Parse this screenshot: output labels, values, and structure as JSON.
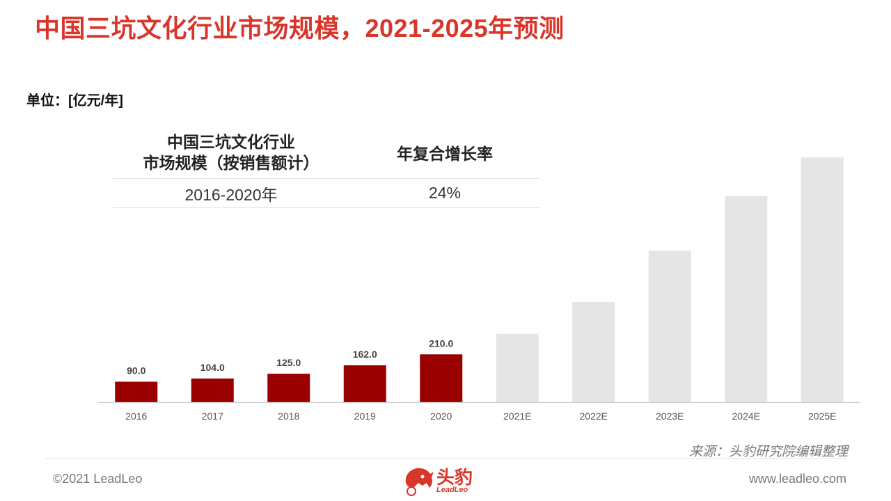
{
  "title": "中国三坑文化行业市场规模，2021-2025年预测",
  "unit": "单位：[亿元/年]",
  "cagr_table": {
    "header_col1_line1": "中国三坑文化行业",
    "header_col1_line2": "市场规模（按销售额计）",
    "header_col2": "年复合增长率",
    "row_period": "2016-2020年",
    "row_value": "24%"
  },
  "chart_data": {
    "type": "bar",
    "categories": [
      "2016",
      "2017",
      "2018",
      "2019",
      "2020",
      "2021E",
      "2022E",
      "2023E",
      "2024E",
      "2025E"
    ],
    "values": [
      90.0,
      104.0,
      125.0,
      162.0,
      210.0,
      300,
      440,
      665,
      905,
      1075
    ],
    "data_labels": [
      "90.0",
      "104.0",
      "125.0",
      "162.0",
      "210.0",
      "",
      "",
      "",
      "",
      ""
    ],
    "ylim": [
      0,
      1100
    ],
    "grid": false,
    "colors": {
      "actual": "#9b0000",
      "forecast": "#e5e5e5",
      "axis": "#d0d0d0",
      "label": "#444444",
      "tick": "#555555"
    }
  },
  "source": "来源：头豹研究院编辑整理",
  "footer": {
    "copyright": "©2021 LeadLeo",
    "website": "www.leadleo.com",
    "logo_cn": "头豹",
    "logo_en": "LeadLeo"
  },
  "brand_color": "#d9362b"
}
